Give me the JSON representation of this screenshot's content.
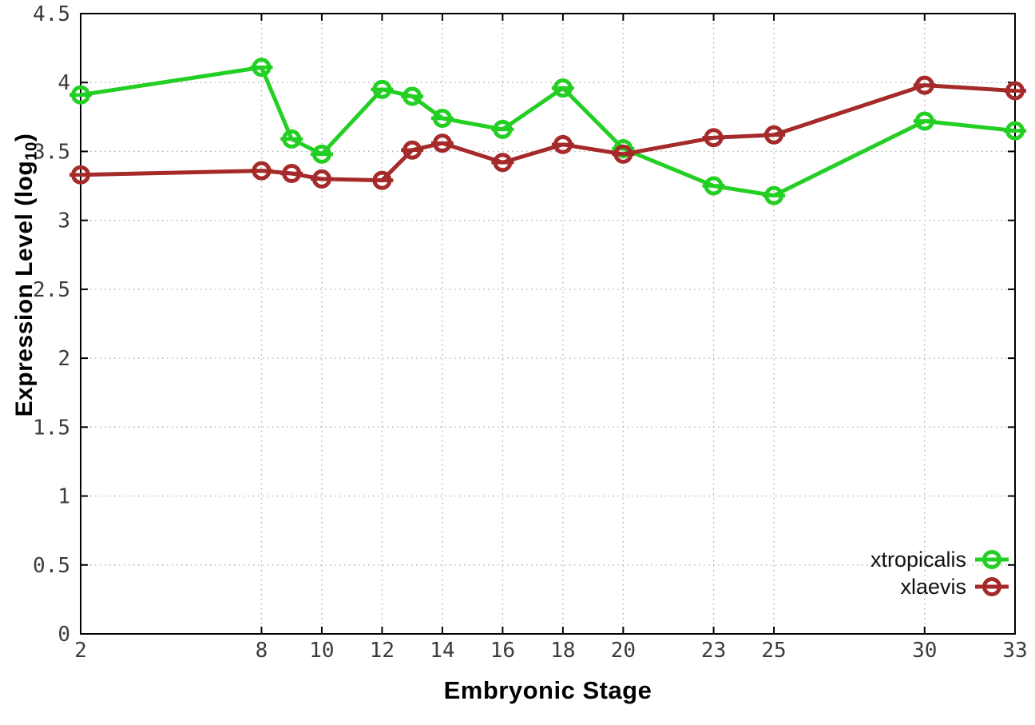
{
  "chart_data": {
    "type": "line",
    "title": "",
    "xlabel": "Embryonic Stage",
    "ylabel": "Expression Level (log10)",
    "ylabel_parts": {
      "prefix": "Expression Level (log",
      "sub": "10",
      "suffix": ")"
    },
    "x": [
      2,
      8,
      9,
      10,
      12,
      13,
      14,
      16,
      18,
      20,
      23,
      25,
      30,
      33
    ],
    "series": [
      {
        "name": "xtropicalis",
        "color": "#24cf24",
        "values": [
          3.91,
          4.11,
          3.59,
          3.48,
          3.95,
          3.9,
          3.74,
          3.66,
          3.96,
          3.52,
          3.25,
          3.18,
          3.72,
          3.65
        ]
      },
      {
        "name": "xlaevis",
        "color": "#a52a2a",
        "values": [
          3.33,
          3.36,
          3.34,
          3.3,
          3.29,
          3.51,
          3.56,
          3.42,
          3.55,
          3.48,
          3.6,
          3.62,
          3.98,
          3.94
        ]
      }
    ],
    "x_ticks": [
      2,
      8,
      10,
      12,
      14,
      16,
      18,
      20,
      23,
      25,
      30,
      33
    ],
    "x_tick_labels": [
      "2",
      "8",
      "10",
      "12",
      "14",
      "16",
      "18",
      "20",
      "23",
      "25",
      "30",
      "33"
    ],
    "y_ticks": [
      0,
      0.5,
      1,
      1.5,
      2,
      2.5,
      3,
      3.5,
      4,
      4.5
    ],
    "y_tick_labels": [
      "0",
      "0.5",
      "1",
      "1.5",
      "2",
      "2.5",
      "3",
      "3.5",
      "4",
      "4.5"
    ],
    "xlim": [
      2,
      33
    ],
    "ylim": [
      0,
      4.5
    ],
    "grid": true,
    "legend_position": "bottom-right",
    "marker": "open-circle-errorbar",
    "grid_color": "#b4b4b4",
    "border_color": "#000000",
    "tick_label_color": "#3c3c3c"
  }
}
